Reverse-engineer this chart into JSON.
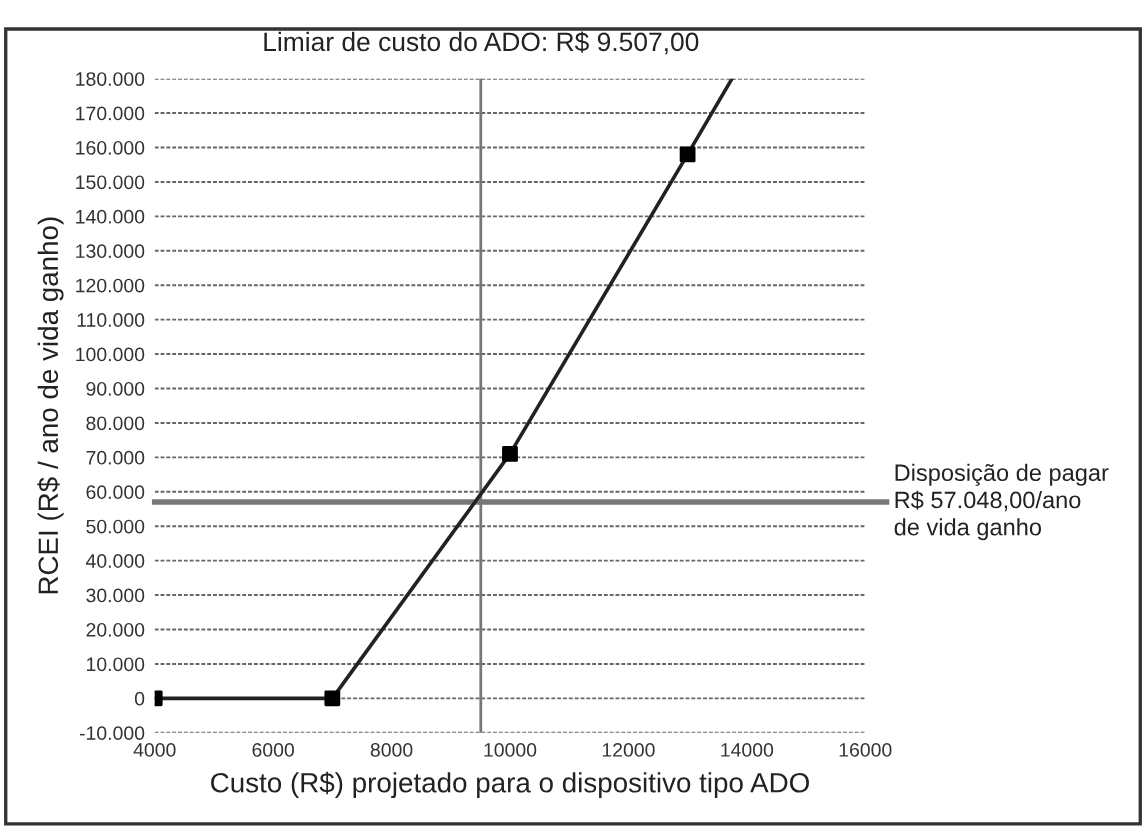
{
  "chart_data": {
    "type": "line",
    "xlabel": "Custo (R$) projetado para o dispositivo tipo ADO",
    "ylabel": "RCEI (R$ / ano de vida ganho)",
    "series": [
      {
        "color": "#222222",
        "marker": "none",
        "x": [
          4000,
          7000,
          10000,
          13000,
          13750
        ],
        "values": [
          0,
          0,
          71000,
          158000,
          180000
        ]
      },
      {
        "type": "scatter",
        "color": "#000000",
        "marker": "square",
        "x": [
          4000,
          7000,
          10000,
          13000
        ],
        "values": [
          0,
          0,
          71000,
          158000
        ]
      }
    ],
    "xlim": [
      4000,
      16000
    ],
    "xticks": [
      4000,
      6000,
      8000,
      10000,
      12000,
      14000,
      16000
    ],
    "ylim": [
      -10000,
      180000
    ],
    "yticks": [
      {
        "value": -10000,
        "label": "-10.000"
      },
      0,
      {
        "value": 10000,
        "label": "10.000"
      },
      {
        "value": 20000,
        "label": "20.000"
      },
      {
        "value": 30000,
        "label": "30.000"
      },
      {
        "value": 40000,
        "label": "40.000"
      },
      {
        "value": 50000,
        "label": "50.000"
      },
      {
        "value": 60000,
        "label": "60.000"
      },
      {
        "value": 70000,
        "label": "70.000"
      },
      {
        "value": 80000,
        "label": "80.000"
      },
      {
        "value": 90000,
        "label": "90.000"
      },
      {
        "value": 100000,
        "label": "100.000"
      },
      {
        "value": 110000,
        "label": "110.000"
      },
      {
        "value": 120000,
        "label": "120.000"
      },
      {
        "value": 130000,
        "label": "130.000"
      },
      {
        "value": 140000,
        "label": "140.000"
      },
      {
        "value": 150000,
        "label": "150.000"
      },
      {
        "value": 160000,
        "label": "160.000"
      },
      {
        "value": 170000,
        "label": "170.000"
      },
      {
        "value": 180000,
        "label": "180.000"
      }
    ],
    "grid": "y",
    "ref_lines": [
      {
        "axis": "x",
        "value": 9507,
        "label": "Limiar de custo do ADO: R$ 9.507,00",
        "color": "#777777"
      },
      {
        "axis": "y",
        "value": 57048,
        "label": "Disposição de pagar\nR$ 57.048,00/ano\nde vida ganho",
        "color": "#777777"
      }
    ]
  }
}
